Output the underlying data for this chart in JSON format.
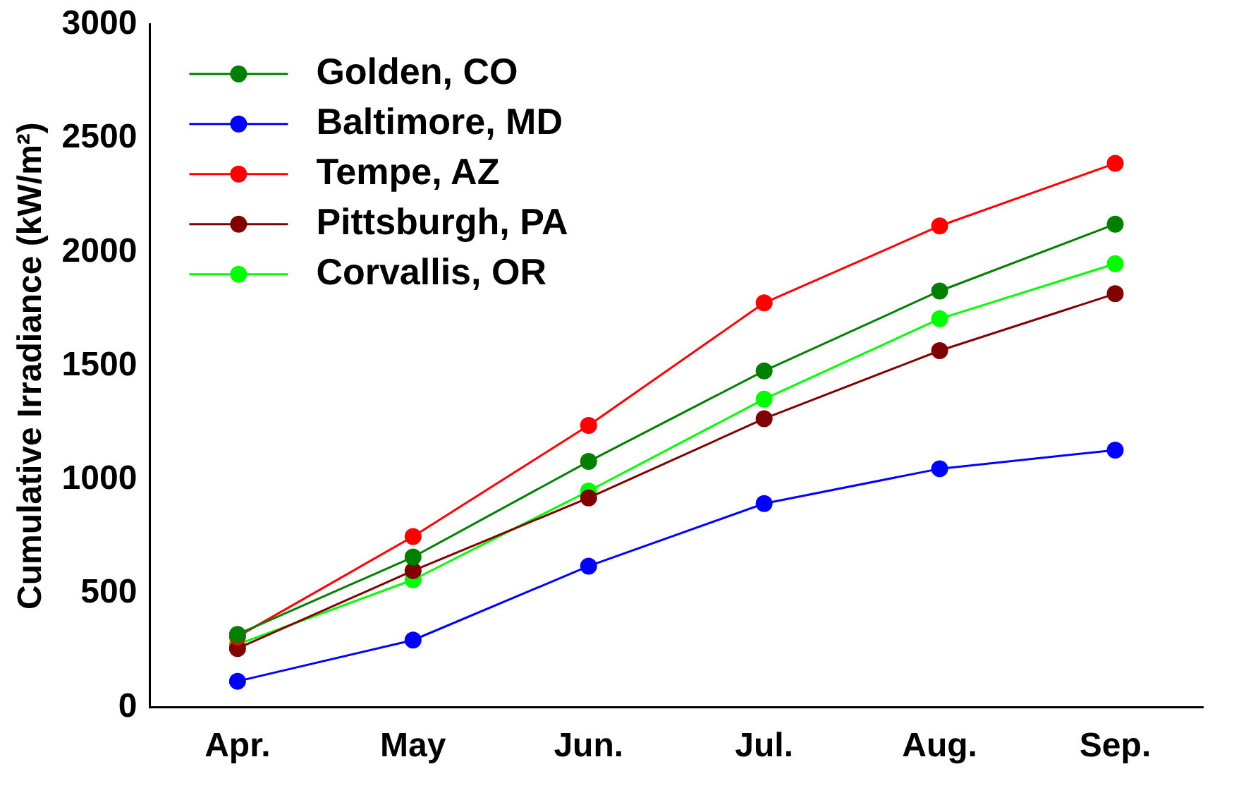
{
  "chart_data": {
    "type": "line",
    "ylabel": "Cumulative Irradiance (kW/m²)",
    "categories": [
      "Apr.",
      "May",
      "Jun.",
      "Jul.",
      "Aug.",
      "Sep."
    ],
    "series": [
      {
        "name": "Golden, CO",
        "color": "#008000",
        "values": [
          320,
          660,
          1080,
          1478,
          1829,
          2123
        ]
      },
      {
        "name": "Baltimore, MD",
        "color": "#0000ff",
        "values": [
          114,
          295,
          620,
          895,
          1048,
          1130
        ]
      },
      {
        "name": "Tempe, AZ",
        "color": "#ff0000",
        "values": [
          310,
          750,
          1238,
          1777,
          2115,
          2390
        ]
      },
      {
        "name": "Pittsburgh, PA",
        "color": "#800000",
        "values": [
          258,
          600,
          920,
          1268,
          1567,
          1817
        ]
      },
      {
        "name": "Corvallis, OR",
        "color": "#00ff00",
        "values": [
          276,
          560,
          950,
          1354,
          1707,
          1949
        ]
      }
    ],
    "ylim": [
      0,
      3000
    ],
    "yticks": [
      0,
      500,
      1000,
      1500,
      2000,
      2500,
      3000
    ],
    "grid": false,
    "legend": "top left",
    "marker": "circle",
    "line_style": "solid"
  }
}
